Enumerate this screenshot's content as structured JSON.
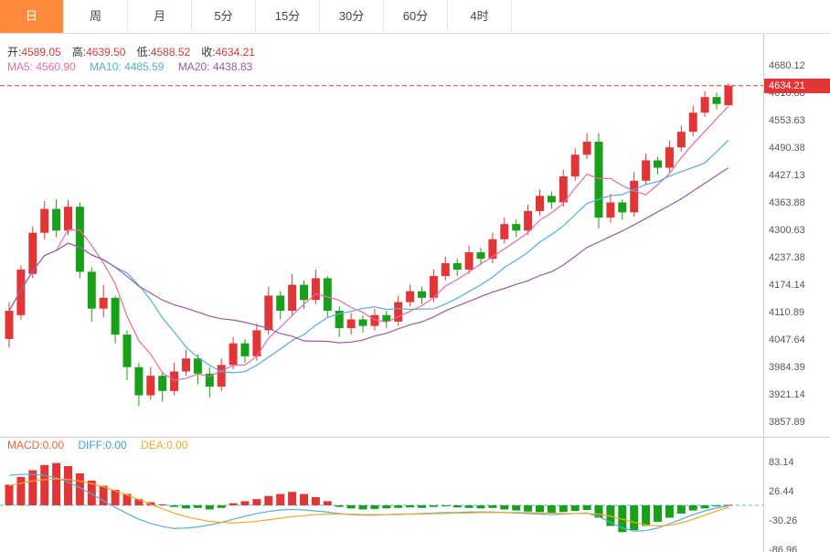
{
  "tabs": [
    {
      "label": "日",
      "active": true
    },
    {
      "label": "周",
      "active": false
    },
    {
      "label": "月",
      "active": false
    },
    {
      "label": "5分",
      "active": false
    },
    {
      "label": "15分",
      "active": false
    },
    {
      "label": "30分",
      "active": false
    },
    {
      "label": "60分",
      "active": false
    },
    {
      "label": "4时",
      "active": false
    }
  ],
  "info": {
    "open_label": "开:",
    "open_value": "4589.05",
    "high_label": "高:",
    "high_value": "4639.50",
    "low_label": "低:",
    "low_value": "4588.52",
    "close_label": "收:",
    "close_value": "4634.21",
    "ma5": "MA5: 4560.90",
    "ma10": "MA10: 4485.59",
    "ma20": "MA20: 4438.83"
  },
  "price_axis": {
    "labels": [
      "4680.12",
      "4616.88",
      "4553.63",
      "4490.38",
      "4427.13",
      "4363.88",
      "4300.63",
      "4237.38",
      "4174.14",
      "4110.89",
      "4047.64",
      "3984.39",
      "3921.14",
      "3857.89"
    ],
    "current_price": "4634.21"
  },
  "macd_panel": {
    "macd": "MACD:0.00",
    "diff": "DIFF:0.00",
    "dea": "DEA:0.00",
    "axis_labels": [
      "83.14",
      "26.44",
      "-30.26",
      "-86.96"
    ]
  },
  "colors": {
    "up": "#e23535",
    "down": "#18a118",
    "ma5": "#e86aa6",
    "ma10": "#54aede",
    "ma20": "#9b59a6",
    "diff_line": "#54aede",
    "dea_line": "#f5a623",
    "zero_line": "#45c8e0",
    "current_price_line": "#e23535",
    "badge_bg": "#e23535",
    "tab_active_bg": "#ff8a3c",
    "value_text": "#e23535"
  },
  "chart_data": {
    "type": "candlestick",
    "interval": "日",
    "ohlc_display": {
      "open": 4589.05,
      "high": 4639.5,
      "low": 4588.52,
      "close": 4634.21
    },
    "ma_values": {
      "MA5": 4560.9,
      "MA10": 4485.59,
      "MA20": 4438.83
    },
    "price_ylim": [
      3857.89,
      4680.12
    ],
    "ma_periods": [
      5,
      10,
      20
    ],
    "candle_format": [
      "open",
      "close",
      "low",
      "high"
    ],
    "candles": [
      [
        4050,
        4115,
        4030,
        4135
      ],
      [
        4105,
        4210,
        4095,
        4220
      ],
      [
        4200,
        4295,
        4190,
        4310
      ],
      [
        4295,
        4350,
        4280,
        4368
      ],
      [
        4350,
        4300,
        4285,
        4372
      ],
      [
        4300,
        4355,
        4290,
        4370
      ],
      [
        4355,
        4205,
        4190,
        4365
      ],
      [
        4205,
        4120,
        4090,
        4215
      ],
      [
        4120,
        4145,
        4100,
        4175
      ],
      [
        4145,
        4060,
        4040,
        4150
      ],
      [
        4060,
        3985,
        3955,
        4070
      ],
      [
        3985,
        3920,
        3895,
        3995
      ],
      [
        3920,
        3965,
        3910,
        3985
      ],
      [
        3965,
        3930,
        3905,
        3975
      ],
      [
        3930,
        3975,
        3920,
        3995
      ],
      [
        3975,
        4005,
        3965,
        4025
      ],
      [
        4005,
        3970,
        3945,
        4015
      ],
      [
        3970,
        3940,
        3915,
        3985
      ],
      [
        3940,
        3990,
        3930,
        4005
      ],
      [
        3990,
        4040,
        3980,
        4055
      ],
      [
        4040,
        4010,
        3995,
        4050
      ],
      [
        4010,
        4070,
        4000,
        4085
      ],
      [
        4070,
        4150,
        4060,
        4170
      ],
      [
        4150,
        4115,
        4095,
        4160
      ],
      [
        4115,
        4175,
        4105,
        4200
      ],
      [
        4175,
        4140,
        4120,
        4185
      ],
      [
        4140,
        4190,
        4130,
        4210
      ],
      [
        4190,
        4115,
        4100,
        4195
      ],
      [
        4115,
        4075,
        4055,
        4125
      ],
      [
        4075,
        4095,
        4060,
        4110
      ],
      [
        4095,
        4080,
        4065,
        4105
      ],
      [
        4080,
        4105,
        4070,
        4120
      ],
      [
        4105,
        4090,
        4075,
        4115
      ],
      [
        4090,
        4135,
        4080,
        4150
      ],
      [
        4135,
        4160,
        4125,
        4175
      ],
      [
        4160,
        4145,
        4130,
        4170
      ],
      [
        4145,
        4195,
        4135,
        4210
      ],
      [
        4195,
        4225,
        4185,
        4240
      ],
      [
        4225,
        4210,
        4195,
        4235
      ],
      [
        4210,
        4250,
        4200,
        4265
      ],
      [
        4250,
        4235,
        4220,
        4260
      ],
      [
        4235,
        4280,
        4225,
        4295
      ],
      [
        4280,
        4315,
        4270,
        4330
      ],
      [
        4315,
        4300,
        4285,
        4325
      ],
      [
        4300,
        4345,
        4290,
        4360
      ],
      [
        4345,
        4380,
        4335,
        4395
      ],
      [
        4380,
        4365,
        4350,
        4390
      ],
      [
        4365,
        4425,
        4355,
        4440
      ],
      [
        4425,
        4475,
        4415,
        4490
      ],
      [
        4475,
        4505,
        4465,
        4525
      ],
      [
        4505,
        4330,
        4305,
        4525
      ],
      [
        4330,
        4365,
        4318,
        4385
      ],
      [
        4365,
        4342,
        4325,
        4372
      ],
      [
        4342,
        4415,
        4332,
        4435
      ],
      [
        4415,
        4462,
        4405,
        4478
      ],
      [
        4462,
        4445,
        4430,
        4470
      ],
      [
        4445,
        4492,
        4435,
        4508
      ],
      [
        4492,
        4528,
        4482,
        4542
      ],
      [
        4528,
        4572,
        4518,
        4588
      ],
      [
        4572,
        4608,
        4562,
        4622
      ],
      [
        4608,
        4592,
        4580,
        4618
      ],
      [
        4589.05,
        4634.21,
        4588.52,
        4639.5
      ]
    ],
    "macd": {
      "ylim": [
        -86.96,
        83.14
      ],
      "display": {
        "MACD": 0.0,
        "DIFF": 0.0,
        "DEA": 0.0
      },
      "hist": [
        40,
        55,
        68,
        78,
        82,
        76,
        62,
        48,
        38,
        30,
        22,
        12,
        6,
        2,
        -3,
        -6,
        -5,
        -8,
        -5,
        4,
        8,
        12,
        18,
        22,
        26,
        22,
        16,
        8,
        -3,
        -6,
        -8,
        -7,
        -6,
        -5,
        -4,
        -5,
        -3,
        -2,
        -4,
        -5,
        -6,
        -5,
        -8,
        -10,
        -12,
        -13,
        -15,
        -13,
        -11,
        -9,
        -24,
        -40,
        -52,
        -48,
        -40,
        -32,
        -24,
        -16,
        -10,
        -6,
        -2,
        1
      ],
      "diff": [
        58,
        60,
        60,
        58,
        53,
        45,
        34,
        22,
        9,
        -4,
        -16,
        -27,
        -35,
        -41,
        -45,
        -44,
        -42,
        -38,
        -33,
        -27,
        -21,
        -16,
        -12,
        -9,
        -8,
        -9,
        -11,
        -13,
        -16,
        -18,
        -19,
        -19,
        -18,
        -17,
        -17,
        -16,
        -15,
        -14,
        -14,
        -13,
        -13,
        -13,
        -14,
        -15,
        -16,
        -17,
        -18,
        -17,
        -16,
        -15,
        -22,
        -33,
        -44,
        -50,
        -49,
        -44,
        -36,
        -27,
        -18,
        -11,
        -5,
        -1
      ],
      "dea": [
        38,
        43,
        47,
        50,
        51,
        50,
        47,
        42,
        36,
        28,
        20,
        11,
        2,
        -7,
        -15,
        -22,
        -27,
        -31,
        -33,
        -34,
        -33,
        -31,
        -28,
        -25,
        -22,
        -20,
        -18,
        -17,
        -17,
        -17,
        -18,
        -18,
        -18,
        -18,
        -17,
        -17,
        -16,
        -16,
        -15,
        -15,
        -14,
        -14,
        -14,
        -14,
        -14,
        -15,
        -15,
        -16,
        -16,
        -16,
        -17,
        -21,
        -27,
        -33,
        -38,
        -40,
        -39,
        -34,
        -27,
        -19,
        -11,
        -4
      ]
    }
  }
}
